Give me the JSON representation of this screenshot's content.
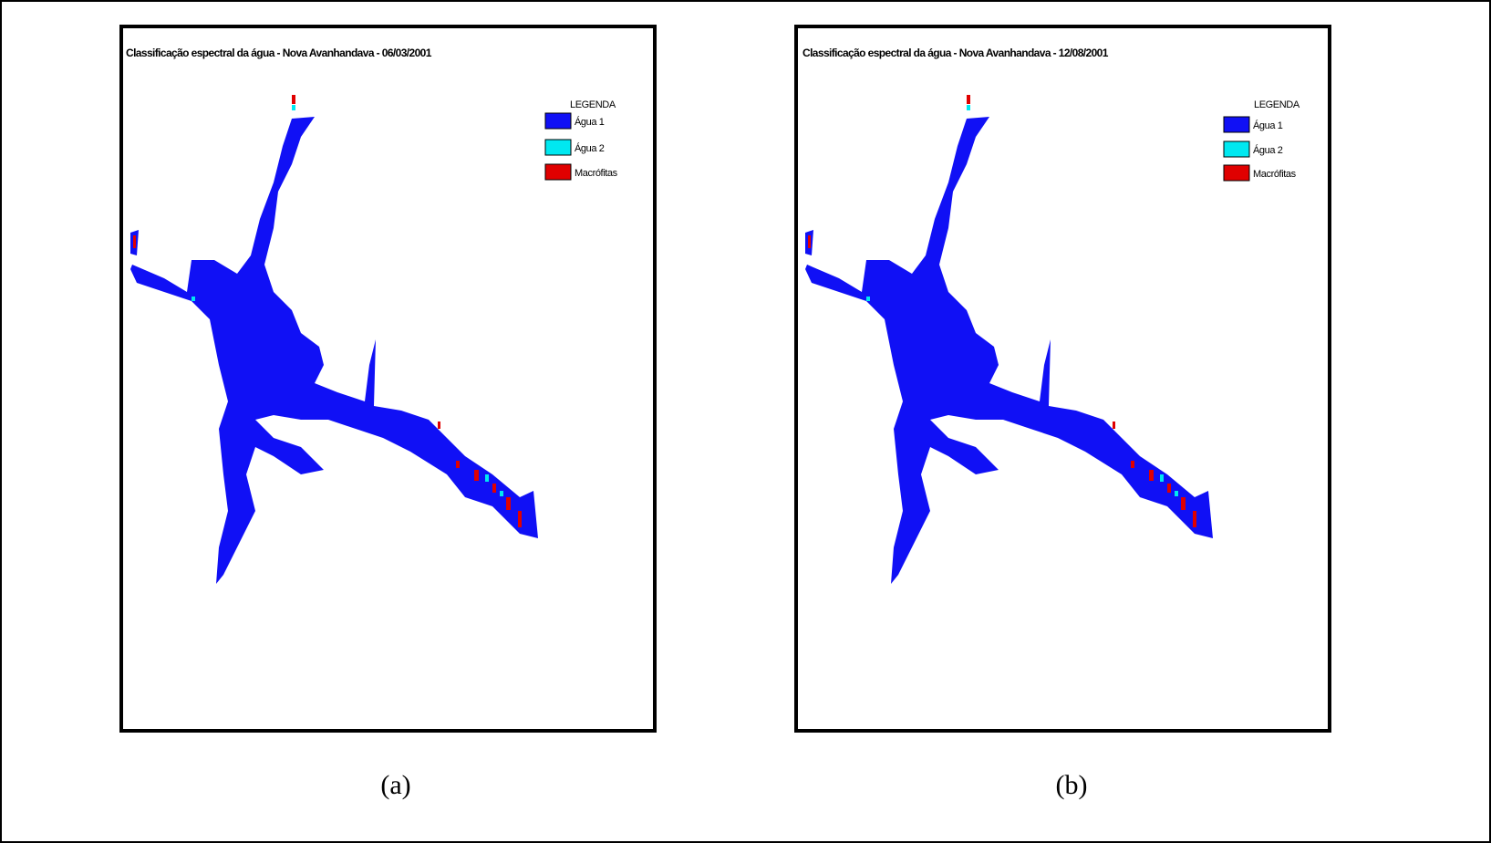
{
  "panels": [
    {
      "title": "Classificação espectral da água - Nova Avanhandava - 06/03/2001",
      "legend": {
        "title": "LEGENDA",
        "items": [
          "Água  1",
          "Água  2",
          "Macrófitas"
        ]
      },
      "caption": "(a)"
    },
    {
      "title": "Classificação espectral da água - Nova Avanhandava - 12/08/2001",
      "legend": {
        "title": "LEGENDA",
        "items": [
          "Água  1",
          "Água  2",
          "Macrófitas"
        ]
      },
      "caption": "(b)"
    }
  ]
}
